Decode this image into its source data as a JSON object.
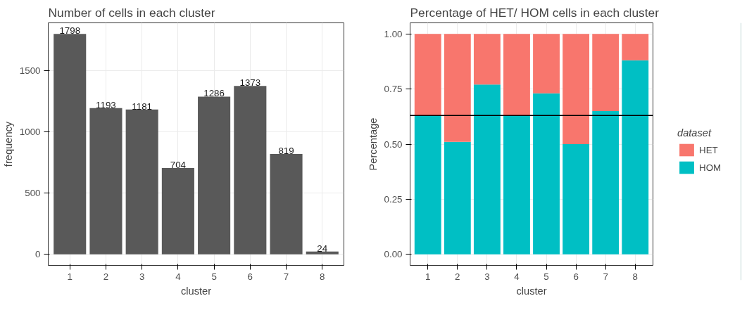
{
  "chart_data": [
    {
      "type": "bar",
      "title": "Number of cells in each cluster",
      "xlabel": "cluster",
      "ylabel": "frequency",
      "categories": [
        "1",
        "2",
        "3",
        "4",
        "5",
        "6",
        "7",
        "8"
      ],
      "values": [
        1798,
        1193,
        1181,
        704,
        1286,
        1373,
        819,
        24
      ],
      "color": "#595959",
      "data_labels": true,
      "ylim": [
        -89.9,
        1887.9
      ],
      "yticks": [
        0,
        500,
        1000,
        1500
      ],
      "grid": true,
      "legend": false
    },
    {
      "type": "bar",
      "title": "Percentage of HET/ HOM cells in each cluster",
      "xlabel": "cluster",
      "ylabel": "Percentage",
      "categories": [
        "1",
        "2",
        "3",
        "4",
        "5",
        "6",
        "7",
        "8"
      ],
      "stacked": true,
      "legend_title": "dataset",
      "legend": "right",
      "series": [
        {
          "name": "HOM",
          "color": "#00bfc4",
          "values": [
            0.63,
            0.51,
            0.77,
            0.63,
            0.73,
            0.5,
            0.65,
            0.88
          ]
        },
        {
          "name": "HET",
          "color": "#f8766d",
          "values": [
            0.37,
            0.49,
            0.23,
            0.37,
            0.27,
            0.5,
            0.35,
            0.12
          ]
        }
      ],
      "ylim": [
        -0.05,
        1.05
      ],
      "yticks": [
        {
          "value": 0,
          "label": "0.00"
        },
        {
          "value": 0.25,
          "label": "0.25"
        },
        {
          "value": 0.5,
          "label": "0.50"
        },
        {
          "value": 0.75,
          "label": "0.75"
        },
        {
          "value": 1,
          "label": "1.00"
        }
      ],
      "grid": true,
      "ref_lines": [
        {
          "axis": "y",
          "value": 0.63,
          "color": "#000000"
        }
      ]
    }
  ]
}
